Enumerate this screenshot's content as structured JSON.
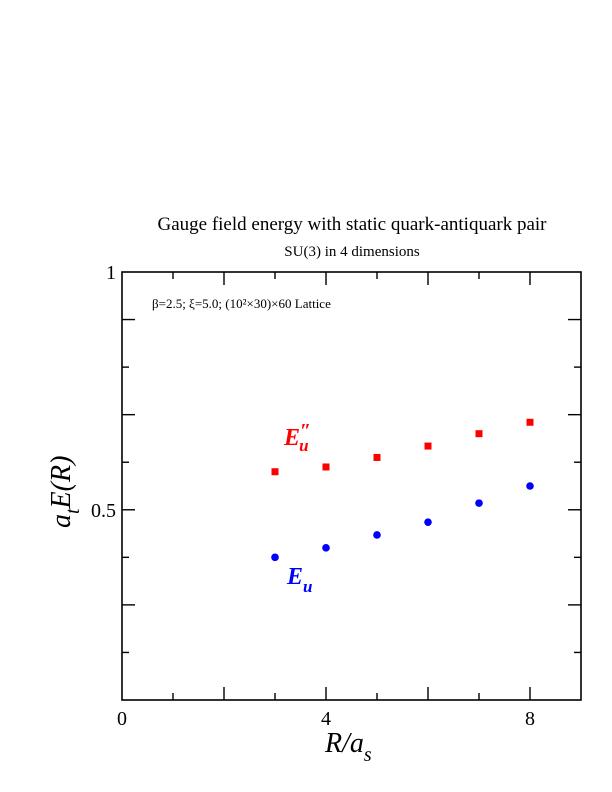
{
  "chart_data": {
    "type": "scatter",
    "title": "Gauge field energy with static quark-antiquark pair",
    "subtitle": "SU(3) in 4 dimensions",
    "annotation": "β=2.5;  ξ=5.0; (10²×30)×60 Lattice",
    "xlabel": {
      "main": "R/a",
      "sub": "s"
    },
    "ylabel": {
      "prefix": "a",
      "sub": "t",
      "main": "E(R)"
    },
    "xlim": [
      0,
      9
    ],
    "ylim": [
      0.1,
      1.0
    ],
    "x_ticks": [
      0,
      4,
      8
    ],
    "x_tick_labels": [
      "0",
      "4",
      "8"
    ],
    "y_ticks": [
      0.5,
      1.0
    ],
    "y_tick_labels": [
      "0.5",
      "1"
    ],
    "grid": false,
    "series": [
      {
        "name": "E″u",
        "label_main": "E",
        "label_sup": "″",
        "label_sub": "u",
        "marker": "square",
        "color": "#ff0000",
        "x": [
          3,
          4,
          5,
          6,
          7,
          8
        ],
        "y": [
          0.58,
          0.59,
          0.61,
          0.634,
          0.66,
          0.684
        ]
      },
      {
        "name": "Eu",
        "label_main": "E",
        "label_sub": "u",
        "marker": "circle",
        "color": "#0000ff",
        "x": [
          3,
          4,
          5,
          6,
          7,
          8
        ],
        "y": [
          0.4,
          0.42,
          0.447,
          0.474,
          0.514,
          0.55
        ]
      }
    ]
  }
}
